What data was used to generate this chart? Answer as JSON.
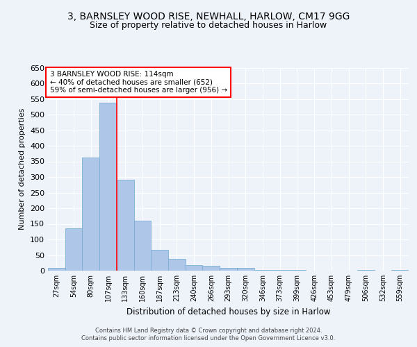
{
  "title_line1": "3, BARNSLEY WOOD RISE, NEWHALL, HARLOW, CM17 9GG",
  "title_line2": "Size of property relative to detached houses in Harlow",
  "xlabel": "Distribution of detached houses by size in Harlow",
  "ylabel": "Number of detached properties",
  "footer_line1": "Contains HM Land Registry data © Crown copyright and database right 2024.",
  "footer_line2": "Contains public sector information licensed under the Open Government Licence v3.0.",
  "categories": [
    "27sqm",
    "54sqm",
    "80sqm",
    "107sqm",
    "133sqm",
    "160sqm",
    "187sqm",
    "213sqm",
    "240sqm",
    "266sqm",
    "293sqm",
    "320sqm",
    "346sqm",
    "373sqm",
    "399sqm",
    "426sqm",
    "453sqm",
    "479sqm",
    "506sqm",
    "532sqm",
    "559sqm"
  ],
  "values": [
    10,
    135,
    362,
    538,
    292,
    160,
    67,
    38,
    17,
    15,
    10,
    8,
    3,
    2,
    2,
    1,
    1,
    0,
    3,
    0,
    3
  ],
  "bar_color": "#aec6e8",
  "bar_edge_color": "#7aafd4",
  "property_bin_index": 3,
  "annotation_text": "3 BARNSLEY WOOD RISE: 114sqm\n← 40% of detached houses are smaller (652)\n59% of semi-detached houses are larger (956) →",
  "annotation_box_color": "white",
  "annotation_box_edge_color": "red",
  "vline_color": "red",
  "ylim": [
    0,
    650
  ],
  "yticks": [
    0,
    50,
    100,
    150,
    200,
    250,
    300,
    350,
    400,
    450,
    500,
    550,
    600,
    650
  ],
  "bg_color": "#eef2f9",
  "grid_color": "white",
  "title_fontsize": 10,
  "subtitle_fontsize": 9
}
